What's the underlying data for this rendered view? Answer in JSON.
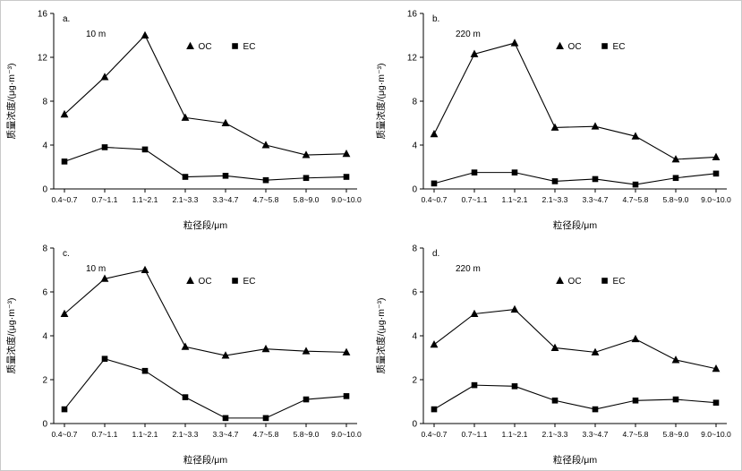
{
  "page": {
    "background": "#ffffff",
    "axis_color": "#000000",
    "line_color": "#000000"
  },
  "chart_data": [
    {
      "id": "a",
      "type": "line",
      "panel_label": "a.",
      "height_label": "10 m",
      "xlabel": "粒径段/μm",
      "ylabel": "质量浓度/(μg·m⁻³)",
      "ylim": [
        0,
        16
      ],
      "ytick_step": 4,
      "grid": false,
      "legend_position": "top-center",
      "categories": [
        "0.4~0.7",
        "0.7~1.1",
        "1.1~2.1",
        "2.1~3.3",
        "3.3~4.7",
        "4.7~5.8",
        "5.8~9.0",
        "9.0~10.0"
      ],
      "series": [
        {
          "name": "OC",
          "marker": "triangle",
          "color": "#000000",
          "values": [
            6.8,
            10.2,
            14.0,
            6.5,
            6.0,
            4.0,
            3.1,
            3.2
          ]
        },
        {
          "name": "EC",
          "marker": "square",
          "color": "#000000",
          "values": [
            2.5,
            3.8,
            3.6,
            1.1,
            1.2,
            0.8,
            1.0,
            1.1
          ]
        }
      ]
    },
    {
      "id": "b",
      "type": "line",
      "panel_label": "b.",
      "height_label": "220 m",
      "xlabel": "粒径段/μm",
      "ylabel": "质量浓度/(μg·m⁻³)",
      "ylim": [
        0,
        16
      ],
      "ytick_step": 4,
      "grid": false,
      "legend_position": "top-center",
      "categories": [
        "0.4~0.7",
        "0.7~1.1",
        "1.1~2.1",
        "2.1~3.3",
        "3.3~4.7",
        "4.7~5.8",
        "5.8~9.0",
        "9.0~10.0"
      ],
      "series": [
        {
          "name": "OC",
          "marker": "triangle",
          "color": "#000000",
          "values": [
            5.0,
            12.3,
            13.3,
            5.6,
            5.7,
            4.8,
            2.7,
            2.9
          ]
        },
        {
          "name": "EC",
          "marker": "square",
          "color": "#000000",
          "values": [
            0.5,
            1.5,
            1.5,
            0.7,
            0.9,
            0.4,
            1.0,
            1.4
          ]
        }
      ]
    },
    {
      "id": "c",
      "type": "line",
      "panel_label": "c.",
      "height_label": "10 m",
      "xlabel": "粒径段/μm",
      "ylabel": "质量浓度/(μg·m⁻³)",
      "ylim": [
        0,
        8
      ],
      "ytick_step": 2,
      "grid": false,
      "legend_position": "top-center",
      "categories": [
        "0.4~0.7",
        "0.7~1.1",
        "1.1~2.1",
        "2.1~3.3",
        "3.3~4.7",
        "4.7~5.8",
        "5.8~9.0",
        "9.0~10.0"
      ],
      "series": [
        {
          "name": "OC",
          "marker": "triangle",
          "color": "#000000",
          "values": [
            5.0,
            6.6,
            7.0,
            3.5,
            3.1,
            3.4,
            3.3,
            3.25
          ]
        },
        {
          "name": "EC",
          "marker": "square",
          "color": "#000000",
          "values": [
            0.65,
            2.95,
            2.4,
            1.2,
            0.25,
            0.25,
            1.1,
            1.25
          ]
        }
      ]
    },
    {
      "id": "d",
      "type": "line",
      "panel_label": "d.",
      "height_label": "220 m",
      "xlabel": "粒径段/μm",
      "ylabel": "质量浓度/(μg·m⁻³)",
      "ylim": [
        0,
        8
      ],
      "ytick_step": 2,
      "grid": false,
      "legend_position": "top-center",
      "categories": [
        "0.4~0.7",
        "0.7~1.1",
        "1.1~2.1",
        "2.1~3.3",
        "3.3~4.7",
        "4.7~5.8",
        "5.8~9.0",
        "9.0~10.0"
      ],
      "series": [
        {
          "name": "OC",
          "marker": "triangle",
          "color": "#000000",
          "values": [
            3.6,
            5.0,
            5.2,
            3.45,
            3.25,
            3.85,
            2.9,
            2.5
          ]
        },
        {
          "name": "EC",
          "marker": "square",
          "color": "#000000",
          "values": [
            0.65,
            1.75,
            1.7,
            1.05,
            0.65,
            1.05,
            1.1,
            0.95
          ]
        }
      ]
    }
  ]
}
